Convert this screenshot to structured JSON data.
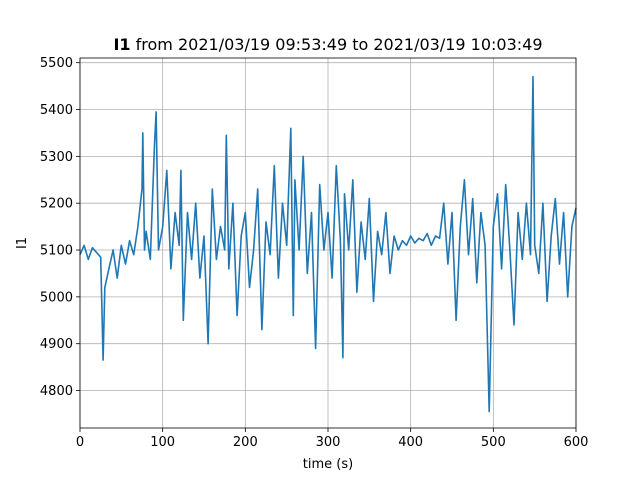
{
  "chart_data": {
    "type": "line",
    "title_bold": "I1",
    "title_rest": " from 2021/03/19 09:53:49 to 2021/03/19 10:03:49",
    "xlabel": "time (s)",
    "ylabel": "I1",
    "xlim": [
      0,
      600
    ],
    "ylim": [
      4720,
      5510
    ],
    "xticks": [
      0,
      100,
      200,
      300,
      400,
      500,
      600
    ],
    "yticks": [
      4800,
      4900,
      5000,
      5100,
      5200,
      5300,
      5400,
      5500
    ],
    "grid": true,
    "line_color": "#1f77b4",
    "series": [
      {
        "x": [
          0,
          5,
          10,
          15,
          20,
          25,
          28,
          30,
          35,
          40,
          45,
          50,
          55,
          60,
          65,
          70,
          75,
          76,
          78,
          80,
          85,
          90,
          92,
          95,
          100,
          105,
          110,
          115,
          120,
          122,
          125,
          130,
          135,
          140,
          145,
          150,
          155,
          160,
          165,
          170,
          175,
          177,
          180,
          185,
          190,
          195,
          200,
          205,
          210,
          215,
          220,
          225,
          230,
          235,
          240,
          245,
          250,
          255,
          258,
          260,
          265,
          270,
          275,
          280,
          285,
          290,
          295,
          300,
          305,
          310,
          315,
          318,
          320,
          325,
          330,
          335,
          340,
          345,
          350,
          355,
          360,
          365,
          370,
          375,
          380,
          385,
          390,
          395,
          400,
          405,
          410,
          415,
          420,
          425,
          430,
          435,
          440,
          445,
          450,
          455,
          460,
          465,
          470,
          475,
          480,
          485,
          490,
          495,
          500,
          505,
          510,
          515,
          520,
          525,
          530,
          535,
          540,
          545,
          548,
          550,
          555,
          560,
          565,
          570,
          575,
          580,
          585,
          590,
          595,
          600
        ],
        "y": [
          5090,
          5110,
          5080,
          5105,
          5095,
          5085,
          4865,
          5020,
          5060,
          5100,
          5040,
          5110,
          5070,
          5120,
          5090,
          5150,
          5230,
          5350,
          5100,
          5140,
          5080,
          5320,
          5395,
          5100,
          5150,
          5270,
          5060,
          5180,
          5110,
          5270,
          4950,
          5180,
          5080,
          5200,
          5040,
          5130,
          4900,
          5230,
          5080,
          5150,
          5100,
          5345,
          5060,
          5200,
          4960,
          5130,
          5180,
          5020,
          5100,
          5230,
          4930,
          5160,
          5090,
          5280,
          5040,
          5200,
          5110,
          5360,
          4960,
          5250,
          5100,
          5300,
          5050,
          5180,
          4890,
          5240,
          5100,
          5180,
          5040,
          5280,
          5120,
          4870,
          5220,
          5100,
          5250,
          5010,
          5160,
          5080,
          5210,
          4990,
          5140,
          5090,
          5180,
          5050,
          5130,
          5100,
          5120,
          5110,
          5130,
          5115,
          5125,
          5120,
          5135,
          5110,
          5130,
          5125,
          5200,
          5070,
          5180,
          4950,
          5150,
          5250,
          5090,
          5210,
          5030,
          5180,
          5110,
          4755,
          5150,
          5220,
          5060,
          5240,
          5100,
          4940,
          5180,
          5080,
          5200,
          5090,
          5470,
          5110,
          5050,
          5200,
          4990,
          5130,
          5210,
          5070,
          5180,
          5000,
          5150,
          5190
        ]
      }
    ]
  }
}
